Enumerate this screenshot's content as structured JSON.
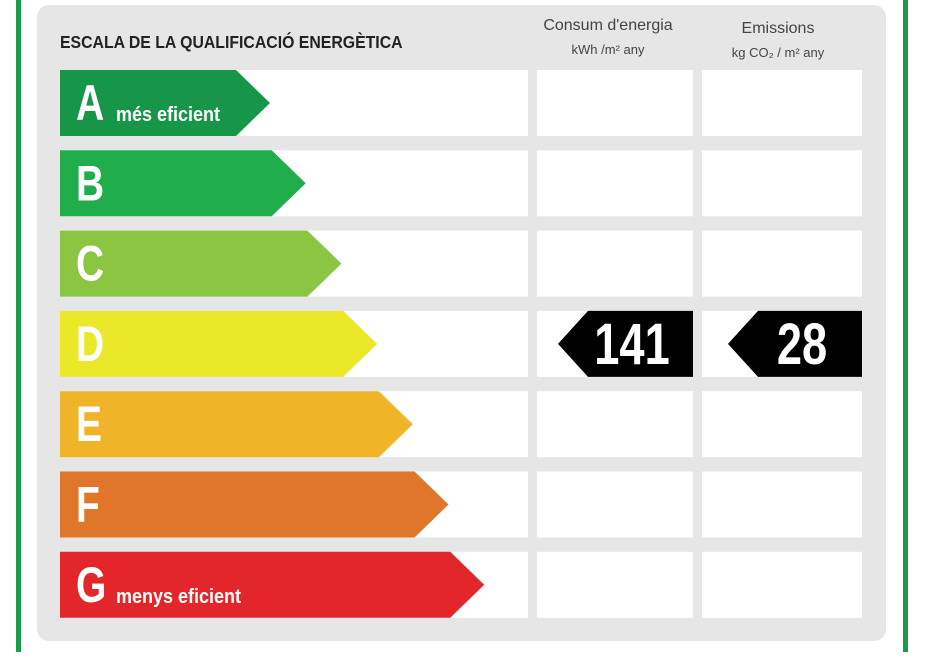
{
  "title": "ESCALA DE LA QUALIFICACIÓ ENERGÈTICA",
  "columns": [
    {
      "label": "Consum d'energia",
      "unit": "kWh /m² any"
    },
    {
      "label": "Emissions",
      "unit": "kg CO₂ / m² any"
    }
  ],
  "ratings": [
    {
      "letter": "A",
      "note": "més eficient",
      "color": "#17964a"
    },
    {
      "letter": "B",
      "color": "#1fae4b"
    },
    {
      "letter": "C",
      "color": "#8cc542"
    },
    {
      "letter": "D",
      "color": "#eae828"
    },
    {
      "letter": "E",
      "color": "#f0b428"
    },
    {
      "letter": "F",
      "color": "#e07629"
    },
    {
      "letter": "G",
      "note": "menys eficient",
      "color": "#e3262a"
    }
  ],
  "current": {
    "rating": "D",
    "consumption": 141,
    "emissions": 28
  }
}
